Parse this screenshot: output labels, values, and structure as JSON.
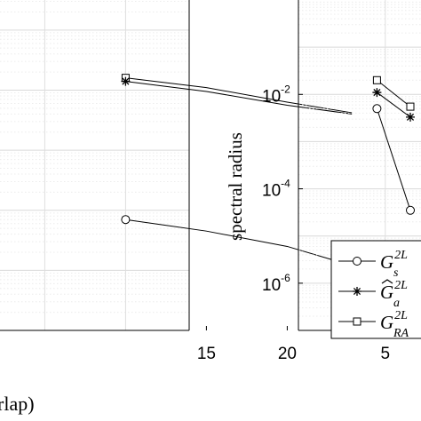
{
  "chart_data": [
    {
      "type": "line",
      "panel": "left",
      "yscale": "log",
      "xlabel_fragment": "rlap)",
      "x_ticks": [
        "15",
        "20"
      ],
      "series": [
        {
          "marker": "square",
          "x": [
            10,
            15,
            20,
            24
          ],
          "y": [
            0.0016,
            0.0011,
            0.00063,
            0.00042
          ]
        },
        {
          "marker": "asterisk",
          "x": [
            10,
            15,
            20,
            24
          ],
          "y": [
            0.0014,
            0.00095,
            0.00056,
            0.0004
          ]
        },
        {
          "marker": "circle",
          "x": [
            10,
            15,
            20,
            24
          ],
          "y": [
            7e-06,
            4.5e-06,
            2.5e-06,
            1.2e-06
          ]
        }
      ]
    },
    {
      "type": "line",
      "panel": "right",
      "yscale": "log",
      "ylabel": "spectral radius",
      "ylim": [
        1e-07,
        1
      ],
      "y_ticks": [
        {
          "base": "10",
          "exp": "-2",
          "value": 0.01
        },
        {
          "base": "10",
          "exp": "-4",
          "value": 0.0001
        },
        {
          "base": "10",
          "exp": "-6",
          "value": 1e-06
        }
      ],
      "x_ticks": [
        "5"
      ],
      "series": [
        {
          "marker": "square",
          "x": [
            4,
            8
          ],
          "y": [
            0.02,
            0.0055
          ]
        },
        {
          "marker": "asterisk",
          "x": [
            4,
            8
          ],
          "y": [
            0.011,
            0.0033
          ]
        },
        {
          "marker": "circle",
          "x": [
            4,
            8
          ],
          "y": [
            0.005,
            3.5e-05
          ]
        }
      ],
      "legend": {
        "placement": "lower-right",
        "entries": [
          {
            "marker": "circle",
            "base": "G",
            "sup": "2L",
            "sub": "s",
            "hat": false
          },
          {
            "marker": "asterisk",
            "base": "G",
            "sup": "2L",
            "sub": "a",
            "hat": true
          },
          {
            "marker": "square",
            "base": "G",
            "sup": "2L",
            "sub": "RA",
            "hat": false
          }
        ]
      }
    }
  ]
}
